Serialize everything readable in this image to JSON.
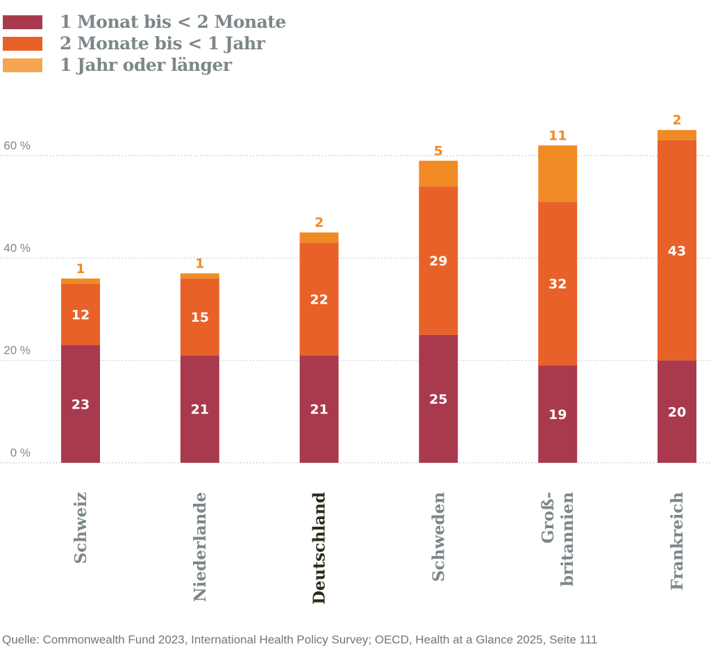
{
  "chart_data": {
    "type": "bar",
    "stacked": true,
    "title": "",
    "xlabel": "",
    "ylabel": "",
    "ylim": [
      0,
      60
    ],
    "yticks": [
      0,
      20,
      40,
      60
    ],
    "ytick_labels": [
      "0 %",
      "20 %",
      "40 %",
      "60 %"
    ],
    "grid": true,
    "legend_position": "top-left",
    "categories": [
      "Schweiz",
      "Niederlande",
      "Deutschland",
      "Schweden",
      "Groß-\nbritannien",
      "Frankreich"
    ],
    "highlight_category": "Deutschland",
    "series": [
      {
        "name": "1 Monat bis < 2 Monate",
        "color": "#a93a4e",
        "values": [
          23,
          21,
          21,
          25,
          19,
          20
        ]
      },
      {
        "name": "2 Monate bis < 1 Jahr",
        "color": "#e86128",
        "values": [
          12,
          15,
          22,
          29,
          32,
          43
        ]
      },
      {
        "name": "1 Jahr oder länger",
        "color": "#f08a24",
        "values": [
          1,
          1,
          2,
          5,
          11,
          2
        ]
      }
    ]
  },
  "legend": [
    {
      "label": "1 Monat bis < 2 Monate",
      "color": "#a93a4e"
    },
    {
      "label": "2 Monate bis < 1 Jahr",
      "color": "#e86128"
    },
    {
      "label": "1 Jahr oder länger",
      "color": "#f5a653"
    }
  ],
  "source": "Quelle: Commonwealth Fund 2023, International Health Policy Survey; OECD, Health at a Glance 2025, Seite 111",
  "colors": {
    "axis_text": "#7d878a",
    "highlight_text": "#2b2a1c",
    "grid": "#b8bcbd",
    "top_label": "#f08a24"
  }
}
